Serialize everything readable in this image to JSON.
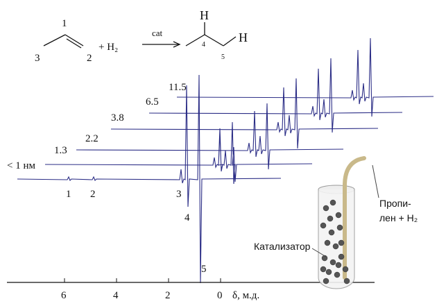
{
  "reaction": {
    "propene_c1": "1",
    "propene_c2": "2",
    "propene_c3": "3",
    "plus_h2": "+ H₂",
    "catalyst": "cat",
    "h_top": "H",
    "h_right": "H",
    "propane_c4": "4",
    "propane_c5": "5"
  },
  "spectra": [
    "< 1 нм",
    "1.3",
    "2.2",
    "3.8",
    "6.5",
    "11.5"
  ],
  "peaks": [
    "1",
    "2",
    "3",
    "4",
    "5"
  ],
  "axis": {
    "label": "δ, м.д.",
    "ticks": [
      6,
      4,
      2,
      0
    ]
  },
  "tube": {
    "catalyst": "Катализатор",
    "gas_line1": "Пропи-",
    "gas_line2": "лен + H₂"
  }
}
